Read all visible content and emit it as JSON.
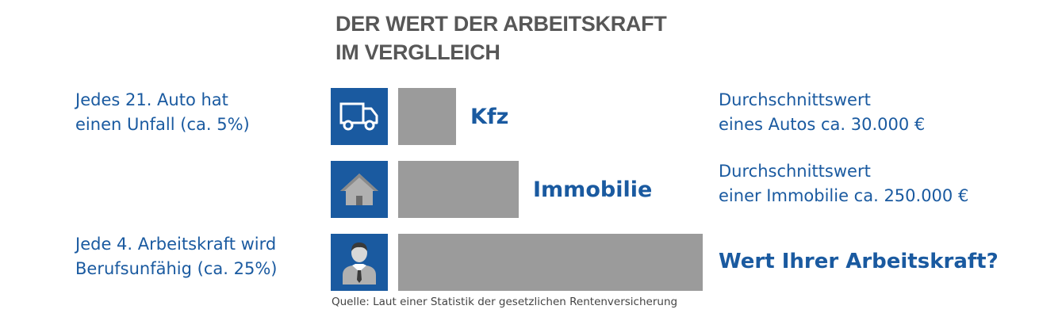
{
  "title": [
    "DER WERT DER ARBEITSKRAFT",
    "IM VERGLLEICH"
  ],
  "left_notes": {
    "auto": [
      "Jedes 21. Auto hat",
      "einen Unfall (ca. 5%)"
    ],
    "arbeitskraft": [
      "Jede 4. Arbeitskraft wird",
      "Berufsunfähig (ca. 25%)"
    ]
  },
  "right_notes": {
    "auto": [
      "Durchschnittswert",
      "eines Autos ca. 30.000 €"
    ],
    "immobilie": [
      "Durchschnittswert",
      "einer Immobilie ca. 250.000 €"
    ]
  },
  "question": "Wert Ihrer Arbeitskraft?",
  "source": "Quelle: Laut einer Statistik der gesetzlichen Rentenversicherung",
  "colors": {
    "accent": "#1a5aa0",
    "bar": "#9b9b9b",
    "title": "#575757"
  },
  "chart_data": {
    "type": "bar",
    "orientation": "horizontal",
    "categories": [
      "Kfz",
      "Immobilie",
      ""
    ],
    "icons": [
      "truck-icon",
      "house-icon",
      "businessman-icon"
    ],
    "values": [
      73,
      152,
      384
    ],
    "value_scale": "relative bar length (unlabeled)",
    "xlabel": "",
    "ylabel": "",
    "grid": false
  }
}
